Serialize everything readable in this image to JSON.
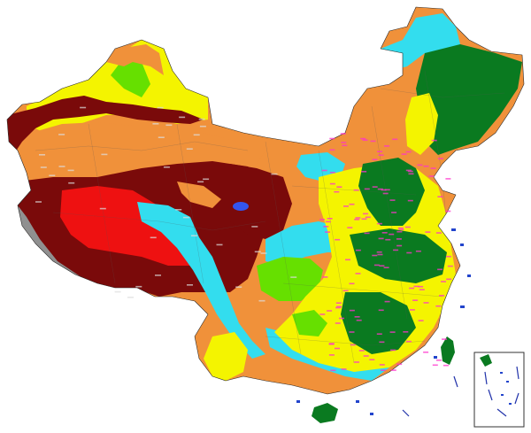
{
  "map": {
    "palette": {
      "dark_red": "#7a0a0a",
      "red": "#ee1111",
      "orange": "#f0913a",
      "yellow": "#f4f400",
      "light_green": "#66e000",
      "green": "#0a7a20",
      "cyan": "#33ddee",
      "gray": "#909090",
      "border": "#2a2a2a",
      "label_magenta": "#ff33cc"
    }
  }
}
